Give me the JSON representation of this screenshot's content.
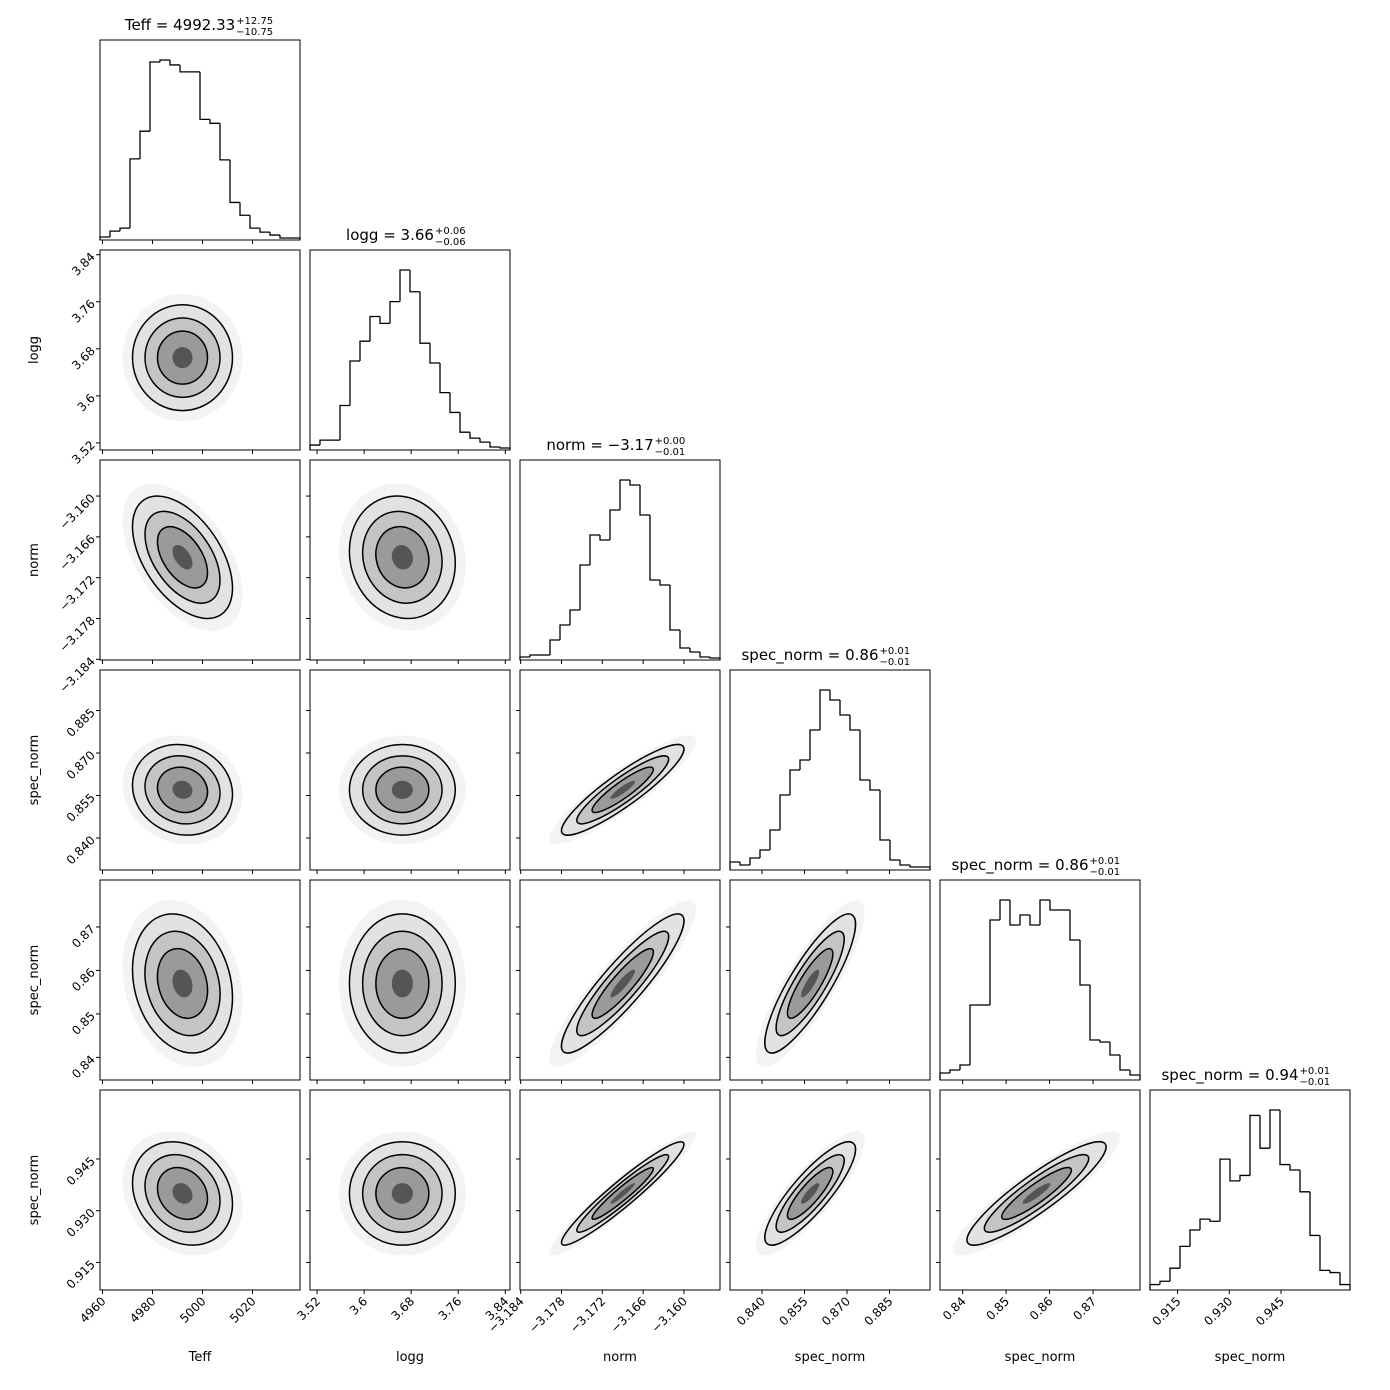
{
  "chart_data": {
    "type": "corner",
    "params": [
      {
        "label": "Teff",
        "title": "Teff = 4992.33",
        "err_plus": "+12.75",
        "err_minus": "−10.75",
        "lim": [
          4959,
          5039
        ],
        "ticks": [
          4960,
          4980,
          5000,
          5020
        ],
        "center": 4992,
        "sigma": 10,
        "bins": [
          4959,
          4963,
          4967,
          4971,
          4975,
          4979,
          4983,
          4987,
          4991,
          4995,
          4999,
          5003,
          5007,
          5011,
          5015,
          5019,
          5023,
          5027,
          5031,
          5035,
          5039
        ],
        "counts": [
          3,
          9,
          12,
          82,
          110,
          180,
          182,
          177,
          170,
          170,
          122,
          118,
          81,
          38,
          25,
          12,
          8,
          5,
          2,
          2
        ]
      },
      {
        "label": "logg",
        "title": "logg = 3.66",
        "err_plus": "+0.06",
        "err_minus": "−0.06",
        "lim": [
          3.508,
          3.848
        ],
        "ticks": [
          3.52,
          3.6,
          3.68,
          3.76,
          3.84
        ],
        "center": 3.665,
        "sigma": 0.045,
        "bins": [
          3.508,
          3.525,
          3.542,
          3.559,
          3.576,
          3.593,
          3.61,
          3.627,
          3.644,
          3.661,
          3.678,
          3.695,
          3.712,
          3.729,
          3.746,
          3.763,
          3.78,
          3.797,
          3.814,
          3.831,
          3.848
        ],
        "counts": [
          5,
          10,
          10,
          45,
          90,
          110,
          135,
          128,
          150,
          182,
          160,
          108,
          88,
          58,
          38,
          18,
          12,
          8,
          3,
          2
        ]
      },
      {
        "label": "norm",
        "title": "norm = −3.17",
        "err_plus": "+0.00",
        "err_minus": "−0.01",
        "lim": [
          -3.1841,
          -3.1547
        ],
        "ticks": [
          {
            "value": -3.184,
            "label": "−3.184"
          },
          {
            "value": -3.178,
            "label": "−3.178"
          },
          {
            "value": -3.172,
            "label": "−3.172"
          },
          {
            "value": -3.166,
            "label": "−3.166"
          },
          {
            "value": -3.16,
            "label": "−3.160"
          }
        ],
        "center": -3.169,
        "sigma": 0.0045,
        "bins": [
          -3.1841,
          -3.18263,
          -3.18116,
          -3.17969,
          -3.17822,
          -3.17675,
          -3.17528,
          -3.17381,
          -3.17234,
          -3.17087,
          -3.1694,
          -3.16793,
          -3.16646,
          -3.16499,
          -3.16352,
          -3.16205,
          -3.16058,
          -3.15911,
          -3.15764,
          -3.15617,
          -3.1547
        ],
        "counts": [
          3,
          5,
          5,
          20,
          35,
          50,
          95,
          125,
          120,
          150,
          180,
          175,
          145,
          80,
          75,
          30,
          12,
          8,
          3,
          2
        ]
      },
      {
        "label": "spec_norm",
        "title": "spec_norm = 0.86",
        "err_plus": "+0.01",
        "err_minus": "−0.01",
        "lim": [
          0.8287,
          0.8993
        ],
        "ticks": [
          {
            "value": 0.84,
            "label": "0.840"
          },
          0.855,
          {
            "value": 0.87,
            "label": "0.870"
          },
          0.885
        ],
        "center": 0.857,
        "sigma": 0.008,
        "bins": [
          0.8287,
          0.83223,
          0.83576,
          0.83929,
          0.84282,
          0.84635,
          0.84988,
          0.85341,
          0.85694,
          0.86047,
          0.864,
          0.86753,
          0.87106,
          0.87459,
          0.87812,
          0.88165,
          0.88518,
          0.88871,
          0.89224,
          0.89577,
          0.8993
        ],
        "counts": [
          8,
          5,
          12,
          20,
          40,
          75,
          100,
          110,
          140,
          180,
          170,
          155,
          140,
          90,
          80,
          30,
          10,
          5,
          3,
          3
        ]
      },
      {
        "label": "spec_norm",
        "title": "spec_norm = 0.86",
        "err_plus": "+0.01",
        "err_minus": "−0.01",
        "lim": [
          0.8348,
          0.8808
        ],
        "ticks": [
          0.84,
          0.85,
          0.86,
          0.87
        ],
        "center": 0.857,
        "sigma": 0.008,
        "bins": [
          0.8348,
          0.8371,
          0.8394,
          0.8417,
          0.844,
          0.8463,
          0.8486,
          0.8509,
          0.8532,
          0.8555,
          0.8578,
          0.8601,
          0.8624,
          0.8647,
          0.867,
          0.8693,
          0.8716,
          0.8739,
          0.8762,
          0.8785,
          0.8808
        ],
        "counts": [
          7,
          10,
          15,
          75,
          75,
          160,
          180,
          155,
          165,
          155,
          180,
          170,
          170,
          140,
          95,
          40,
          38,
          25,
          10,
          5
        ]
      },
      {
        "label": "spec_norm",
        "title": "spec_norm = 0.94",
        "err_plus": "+0.01",
        "err_minus": "−0.01",
        "lim": [
          0.907,
          0.965
        ],
        "ticks": [
          0.915,
          {
            "value": 0.93,
            "label": "0.930"
          },
          0.945
        ],
        "center": 0.935,
        "sigma": 0.0075,
        "bins": [
          0.907,
          0.9099,
          0.9128,
          0.9157,
          0.9186,
          0.9215,
          0.9244,
          0.9273,
          0.9302,
          0.9331,
          0.936,
          0.9389,
          0.9418,
          0.9447,
          0.9476,
          0.9505,
          0.9534,
          0.9563,
          0.9592,
          0.9621,
          0.965
        ],
        "counts": [
          5,
          8,
          20,
          40,
          55,
          65,
          63,
          120,
          100,
          105,
          160,
          130,
          165,
          115,
          110,
          90,
          50,
          18,
          16,
          5
        ]
      }
    ],
    "rho": [
      [],
      [
        0.0
      ],
      [
        -0.5,
        -0.1
      ],
      [
        -0.1,
        0.0,
        0.9
      ],
      [
        -0.2,
        0.0,
        0.9,
        0.85
      ],
      [
        -0.2,
        0.0,
        0.95,
        0.85,
        0.9
      ]
    ]
  }
}
